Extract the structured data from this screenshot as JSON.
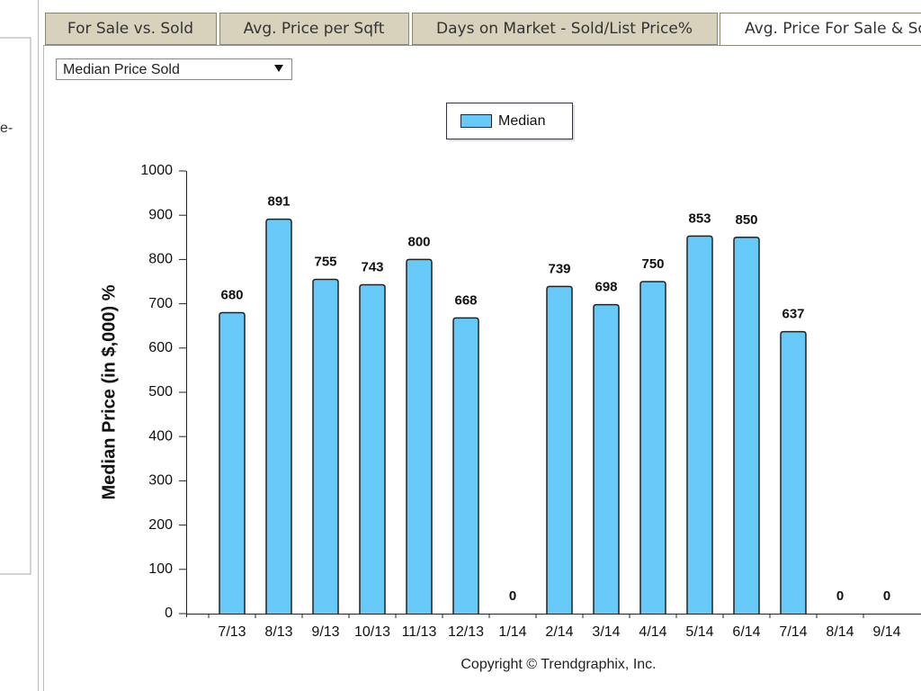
{
  "sidebar_text": "e-",
  "tabs": [
    "For Sale vs. Sold",
    "Avg. Price per Sqft",
    "Days on Market - Sold/List Price%",
    "Avg. Price For Sale & So"
  ],
  "dropdown": "Median Price Sold",
  "chart_data": {
    "type": "bar",
    "y_label": "Median Price (in $,000) %",
    "categories": [
      "7/13",
      "8/13",
      "9/13",
      "10/13",
      "11/13",
      "12/13",
      "1/14",
      "2/14",
      "3/14",
      "4/14",
      "5/14",
      "6/14",
      "7/14",
      "8/14",
      "9/14"
    ],
    "series": [
      {
        "name": "Median",
        "color": "#66c9f7",
        "values": [
          680,
          891,
          755,
          743,
          800,
          668,
          0,
          739,
          698,
          750,
          853,
          850,
          637,
          0,
          0
        ]
      }
    ],
    "ylim": [
      0,
      1000
    ],
    "yticks": [
      0,
      100,
      200,
      300,
      400,
      500,
      600,
      700,
      800,
      900,
      1000
    ],
    "footer": "Copyright © Trendgraphix, Inc."
  }
}
